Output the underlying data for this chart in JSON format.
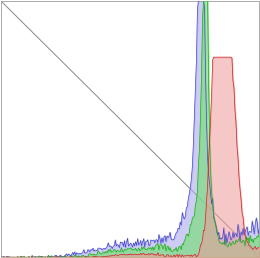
{
  "n_points": 256,
  "plot_bg_color": "#ffffff",
  "grid_color": "#cccccc",
  "diagonal_color": "#888888",
  "figsize": [
    2.6,
    2.58
  ],
  "dpi": 100,
  "xlim": [
    0,
    255
  ],
  "ylim": [
    0,
    1
  ],
  "blue_fill_color": "#aaaaee",
  "blue_line_color": "#4444cc",
  "green_fill_color": "#77dd77",
  "green_line_color": "#22aa22",
  "red_fill_color": "#ee9999",
  "red_line_color": "#cc2222",
  "blue_fill_alpha": 0.6,
  "green_fill_alpha": 0.65,
  "red_fill_alpha": 0.55
}
